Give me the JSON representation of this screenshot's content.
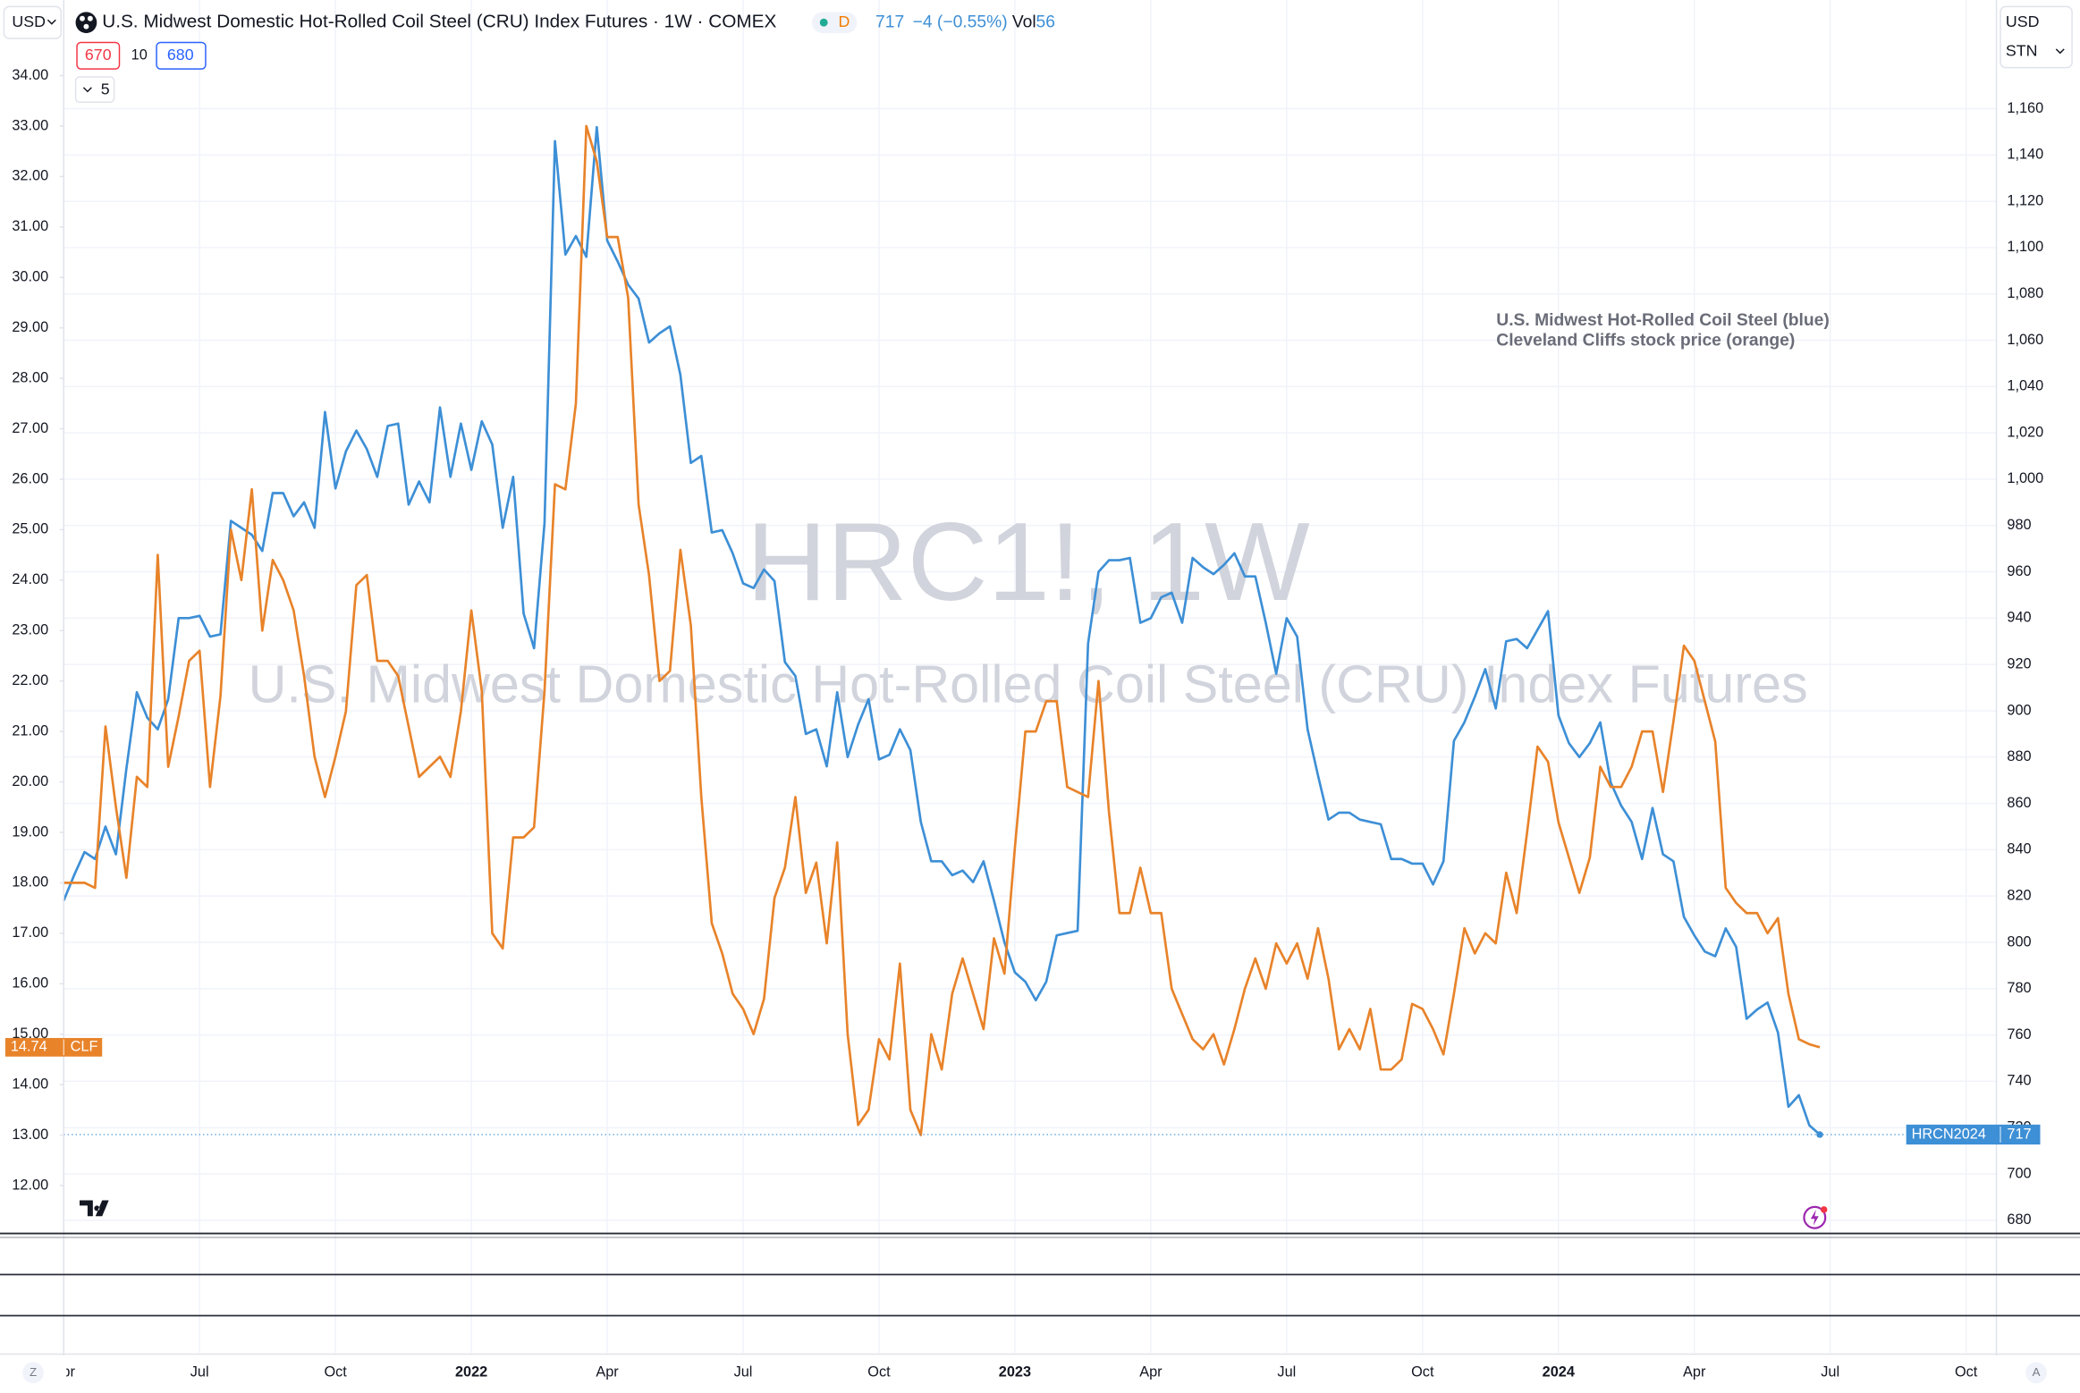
{
  "header": {
    "currency_left": "USD",
    "title": "U.S. Midwest Domestic Hot-Rolled Coil Steel (CRU) Index Futures · 1W · COMEX",
    "interval_badge": "D",
    "change": "−4 (−0.55%)",
    "volume_label": "Vol",
    "volume": 56,
    "currency_right": "USD",
    "unit_right": "STN",
    "order_sell": 670,
    "order_qty": 10,
    "order_buy": 680,
    "collapse_count": 5
  },
  "watermark": {
    "symbol": "HRC1!, 1W",
    "description": "U.S. Midwest Domestic Hot-Rolled Coil Steel (CRU) Index Futures"
  },
  "bottom_bar": {
    "left_button": "Z",
    "right_button": "A"
  },
  "chart_data": {
    "type": "line",
    "annotations": [
      "U.S. Midwest Hot-Rolled Coil Steel (blue)",
      "Cleveland Cliffs stock price (orange)"
    ],
    "categories": [
      "Apr",
      null,
      null,
      null,
      null,
      null,
      null,
      null,
      null,
      null,
      null,
      null,
      null,
      "Jul",
      null,
      null,
      null,
      null,
      null,
      null,
      null,
      null,
      null,
      null,
      null,
      null,
      "Oct",
      null,
      null,
      null,
      null,
      null,
      null,
      null,
      null,
      null,
      null,
      null,
      null,
      "2022",
      null,
      null,
      null,
      null,
      null,
      null,
      null,
      null,
      null,
      null,
      null,
      null,
      "Apr",
      null,
      null,
      null,
      null,
      null,
      null,
      null,
      null,
      null,
      null,
      null,
      null,
      "Jul",
      null,
      null,
      null,
      null,
      null,
      null,
      null,
      null,
      null,
      null,
      null,
      null,
      "Oct",
      null,
      null,
      null,
      null,
      null,
      null,
      null,
      null,
      null,
      null,
      null,
      null,
      "2023",
      null,
      null,
      null,
      null,
      null,
      null,
      null,
      null,
      null,
      null,
      null,
      null,
      "Apr",
      null,
      null,
      null,
      null,
      null,
      null,
      null,
      null,
      null,
      null,
      null,
      null,
      "Jul",
      null,
      null,
      null,
      null,
      null,
      null,
      null,
      null,
      null,
      null,
      null,
      null,
      "Oct",
      null,
      null,
      null,
      null,
      null,
      null,
      null,
      null,
      null,
      null,
      null,
      null,
      "2024",
      null,
      null,
      null,
      null,
      null,
      null,
      null,
      null,
      null,
      null,
      null,
      null,
      "Apr",
      null,
      null,
      null,
      null,
      null,
      null,
      null,
      null,
      null,
      null,
      null,
      null,
      "Jul",
      null,
      null,
      null,
      null,
      null,
      null,
      null,
      null,
      null,
      null,
      null,
      null,
      "Oct"
    ],
    "series": [
      {
        "name": "HRCN2024",
        "color": "#3d8fd6",
        "axis": "y2",
        "values": [
          818,
          829,
          839,
          836,
          850,
          838,
          875,
          908,
          897,
          892,
          905,
          940,
          940,
          941,
          932,
          933,
          982,
          979,
          976,
          969,
          994,
          994,
          984,
          990,
          979,
          1029,
          996,
          1012,
          1021,
          1013,
          1001,
          1023,
          1024,
          989,
          999,
          990,
          1031,
          1001,
          1024,
          1004,
          1025,
          1015,
          979,
          1001,
          942,
          927,
          981,
          1146,
          1097,
          1105,
          1096,
          1152,
          1103,
          1094,
          1084,
          1078,
          1059,
          1063,
          1066,
          1045,
          1007,
          1010,
          977,
          978,
          968,
          955,
          953,
          961,
          956,
          921,
          915,
          890,
          892,
          876,
          908,
          880,
          894,
          905,
          879,
          881,
          892,
          883,
          852,
          835,
          835,
          829,
          831,
          826,
          835,
          818,
          800,
          787,
          783,
          775,
          783,
          803,
          804,
          805,
          929,
          960,
          965,
          965,
          966,
          938,
          940,
          949,
          951,
          938,
          966,
          962,
          959,
          963,
          968,
          958,
          958,
          938,
          916,
          940,
          932,
          892,
          872,
          853,
          856,
          856,
          853,
          852,
          851,
          836,
          836,
          834,
          834,
          825,
          835,
          887,
          895,
          906,
          918,
          901,
          930,
          931,
          927,
          935,
          943,
          898,
          886,
          880,
          886,
          895,
          869,
          859,
          852,
          836,
          858,
          838,
          835,
          811,
          803,
          796,
          794,
          806,
          798,
          767,
          771,
          774,
          761,
          729,
          734,
          721,
          717,
          null,
          null,
          null,
          null,
          null,
          null,
          null,
          null,
          null,
          null,
          null,
          null,
          null,
          null
        ]
      },
      {
        "name": "CLF",
        "color": "#e8832a",
        "values": [
          18.0,
          18.0,
          18.0,
          17.9,
          21.1,
          19.5,
          18.1,
          20.1,
          19.9,
          24.5,
          20.3,
          21.3,
          22.4,
          22.6,
          19.9,
          21.7,
          25.0,
          24.0,
          25.8,
          23.0,
          24.4,
          24.0,
          23.4,
          22.1,
          20.5,
          19.7,
          20.5,
          21.4,
          23.9,
          24.1,
          22.4,
          22.4,
          22.1,
          21.1,
          20.1,
          20.3,
          20.5,
          20.1,
          21.4,
          23.4,
          21.8,
          17.0,
          16.7,
          18.9,
          18.9,
          19.1,
          21.8,
          25.9,
          25.8,
          27.5,
          33.0,
          32.3,
          30.8,
          30.8,
          29.6,
          25.5,
          24.1,
          22.0,
          22.2,
          24.6,
          23.1,
          19.7,
          17.2,
          16.6,
          15.8,
          15.5,
          15.0,
          15.7,
          17.7,
          18.3,
          19.7,
          17.8,
          18.4,
          16.8,
          18.8,
          15.0,
          13.2,
          13.5,
          14.9,
          14.5,
          16.4,
          13.5,
          13.0,
          15.0,
          14.3,
          15.8,
          16.5,
          15.8,
          15.1,
          16.9,
          16.2,
          18.7,
          21.0,
          21.0,
          21.6,
          21.6,
          19.9,
          19.8,
          19.7,
          22.0,
          19.4,
          17.4,
          17.4,
          18.3,
          17.4,
          17.4,
          15.9,
          15.4,
          14.9,
          14.7,
          15.0,
          14.4,
          15.1,
          15.9,
          16.5,
          15.9,
          16.8,
          16.4,
          16.8,
          16.1,
          17.1,
          16.1,
          14.7,
          15.1,
          14.7,
          15.5,
          14.3,
          14.3,
          14.5,
          15.6,
          15.5,
          15.1,
          14.6,
          15.8,
          17.1,
          16.6,
          17.0,
          16.8,
          18.2,
          17.4,
          19.0,
          20.7,
          20.4,
          19.2,
          18.5,
          17.8,
          18.5,
          20.3,
          19.9,
          19.9,
          20.3,
          21.0,
          21.0,
          19.8,
          21.2,
          22.7,
          22.4,
          21.6,
          20.8,
          17.9,
          17.6,
          17.4,
          17.4,
          17.0,
          17.3,
          15.8,
          14.9,
          14.8,
          14.74,
          null,
          null,
          null,
          null,
          null,
          null,
          null,
          null,
          null,
          null,
          null,
          null,
          null,
          null
        ]
      }
    ],
    "ylim": [
      11.05,
      35.42
    ],
    "yticks": [
      {
        "value": 12,
        "label": "12.00"
      },
      {
        "value": 13,
        "label": "13.00"
      },
      {
        "value": 14,
        "label": "14.00"
      },
      {
        "value": 15,
        "label": "15.00"
      },
      {
        "value": 16,
        "label": "16.00"
      },
      {
        "value": 17,
        "label": "17.00"
      },
      {
        "value": 18,
        "label": "18.00"
      },
      {
        "value": 19,
        "label": "19.00"
      },
      {
        "value": 20,
        "label": "20.00"
      },
      {
        "value": 21,
        "label": "21.00"
      },
      {
        "value": 22,
        "label": "22.00"
      },
      {
        "value": 23,
        "label": "23.00"
      },
      {
        "value": 24,
        "label": "24.00"
      },
      {
        "value": 25,
        "label": "25.00"
      },
      {
        "value": 26,
        "label": "26.00"
      },
      {
        "value": 27,
        "label": "27.00"
      },
      {
        "value": 28,
        "label": "28.00"
      },
      {
        "value": 29,
        "label": "29.00"
      },
      {
        "value": 30,
        "label": "30.00"
      },
      {
        "value": 31,
        "label": "31.00"
      },
      {
        "value": 32,
        "label": "32.00"
      },
      {
        "value": 33,
        "label": "33.00"
      },
      {
        "value": 34,
        "label": "34.00"
      }
    ],
    "y2lim": [
      674.3,
      1205.2
    ],
    "y2ticks": [
      680,
      700,
      720,
      740,
      760,
      780,
      800,
      820,
      840,
      860,
      880,
      900,
      920,
      940,
      960,
      980,
      {
        "value": 1000,
        "label": "1,000"
      },
      {
        "value": 1020,
        "label": "1,020"
      },
      {
        "value": 1040,
        "label": "1,040"
      },
      {
        "value": 1060,
        "label": "1,060"
      },
      {
        "value": 1080,
        "label": "1,080"
      },
      {
        "value": 1100,
        "label": "1,100"
      },
      {
        "value": 1120,
        "label": "1,120"
      },
      {
        "value": 1140,
        "label": "1,140"
      },
      {
        "value": 1160,
        "label": "1,160"
      }
    ],
    "grid": true,
    "last_value_line": true
  }
}
